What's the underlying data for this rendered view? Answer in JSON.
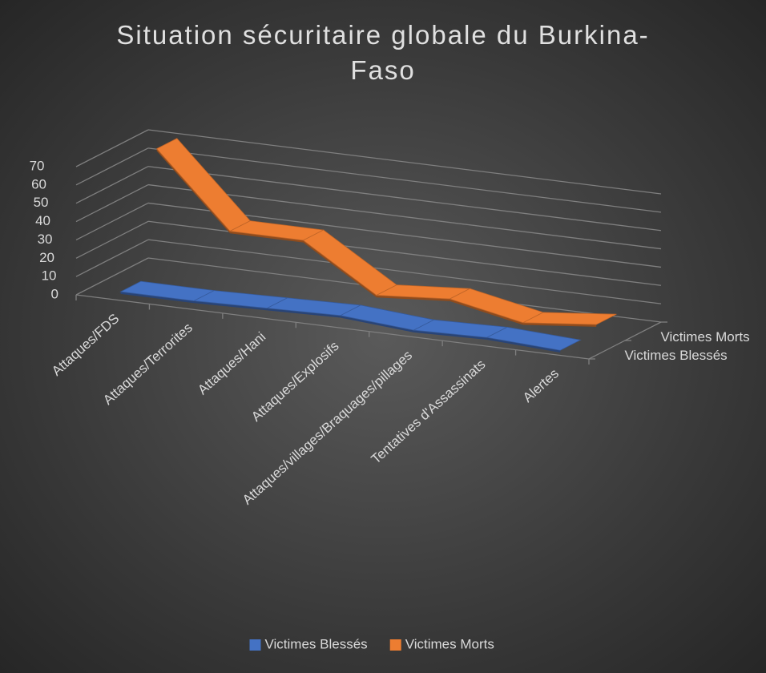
{
  "chart_data": {
    "type": "line3d",
    "title": "Situation sécuritaire globale du Burkina-Faso",
    "categories": [
      "Attaques/FDS",
      "Attaques/Terrorites",
      "Attaques/Hani",
      "Attaques/Explosifs",
      "Attaques/villages/Braquages/pillages",
      "Tentatives d'Assassinats",
      "Alertes"
    ],
    "series": [
      {
        "name": "Victimes Blessés",
        "color": "#4472c4",
        "values": [
          2,
          2,
          3,
          4,
          1,
          2,
          0
        ]
      },
      {
        "name": "Victimes Morts",
        "color": "#ed7d31",
        "values": [
          70,
          30,
          30,
          5,
          8,
          0,
          4
        ]
      }
    ],
    "ylim": [
      0,
      70
    ],
    "yticks": [
      0,
      10,
      20,
      30,
      40,
      50,
      60,
      70
    ],
    "grid": true,
    "legend": "bottom"
  }
}
